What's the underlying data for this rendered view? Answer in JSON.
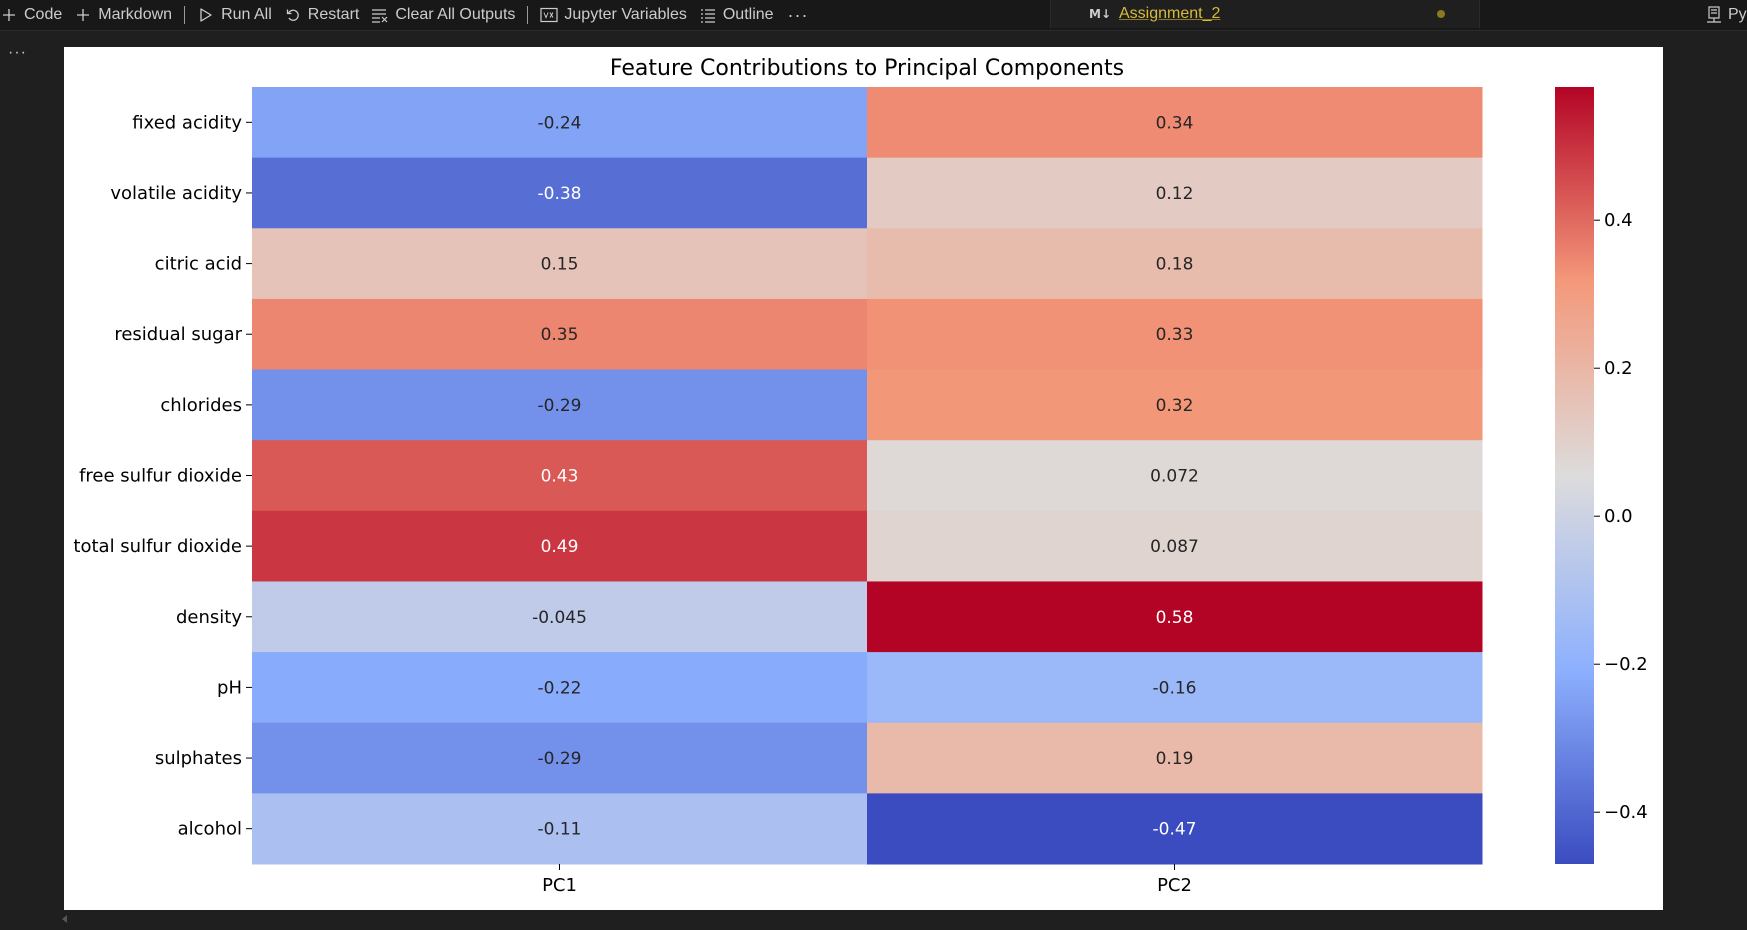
{
  "toolbar": {
    "code_label": "Code",
    "markdown_label": "Markdown",
    "run_all_label": "Run All",
    "restart_label": "Restart",
    "clear_outputs_label": "Clear All Outputs",
    "variables_label": "Jupyter Variables",
    "outline_label": "Outline",
    "more_label": "···"
  },
  "editor_tab": {
    "badge": "M↓",
    "title": "Assignment_2"
  },
  "kernel": {
    "label": "Py"
  },
  "cell": {
    "more_label": "···"
  },
  "colors": {
    "accent_tab_title": "#d7ba3d",
    "cmap": "coolwarm"
  },
  "chart_data": {
    "type": "heatmap",
    "title": "Feature Contributions to Principal Components",
    "columns": [
      "PC1",
      "PC2"
    ],
    "rows": [
      "fixed acidity",
      "volatile acidity",
      "citric acid",
      "residual sugar",
      "chlorides",
      "free sulfur dioxide",
      "total sulfur dioxide",
      "density",
      "pH",
      "sulphates",
      "alcohol"
    ],
    "values": [
      [
        -0.24,
        0.34
      ],
      [
        -0.38,
        0.12
      ],
      [
        0.15,
        0.18
      ],
      [
        0.35,
        0.33
      ],
      [
        -0.29,
        0.32
      ],
      [
        0.43,
        0.072
      ],
      [
        0.49,
        0.087
      ],
      [
        -0.045,
        0.58
      ],
      [
        -0.22,
        -0.16
      ],
      [
        -0.29,
        0.19
      ],
      [
        -0.11,
        -0.47
      ]
    ],
    "annotations": [
      [
        "-0.24",
        "0.34"
      ],
      [
        "-0.38",
        "0.12"
      ],
      [
        "0.15",
        "0.18"
      ],
      [
        "0.35",
        "0.33"
      ],
      [
        "-0.29",
        "0.32"
      ],
      [
        "0.43",
        "0.072"
      ],
      [
        "0.49",
        "0.087"
      ],
      [
        "-0.045",
        "0.58"
      ],
      [
        "-0.22",
        "-0.16"
      ],
      [
        "-0.29",
        "0.19"
      ],
      [
        "-0.11",
        "-0.47"
      ]
    ],
    "colorbar": {
      "range": [
        -0.47,
        0.58
      ],
      "ticks": [
        0.4,
        0.2,
        0.0,
        -0.2,
        -0.4
      ],
      "tick_labels": [
        "0.4",
        "0.2",
        "0.0",
        "−0.2",
        "−0.4"
      ]
    },
    "xlabel": "",
    "ylabel": ""
  }
}
